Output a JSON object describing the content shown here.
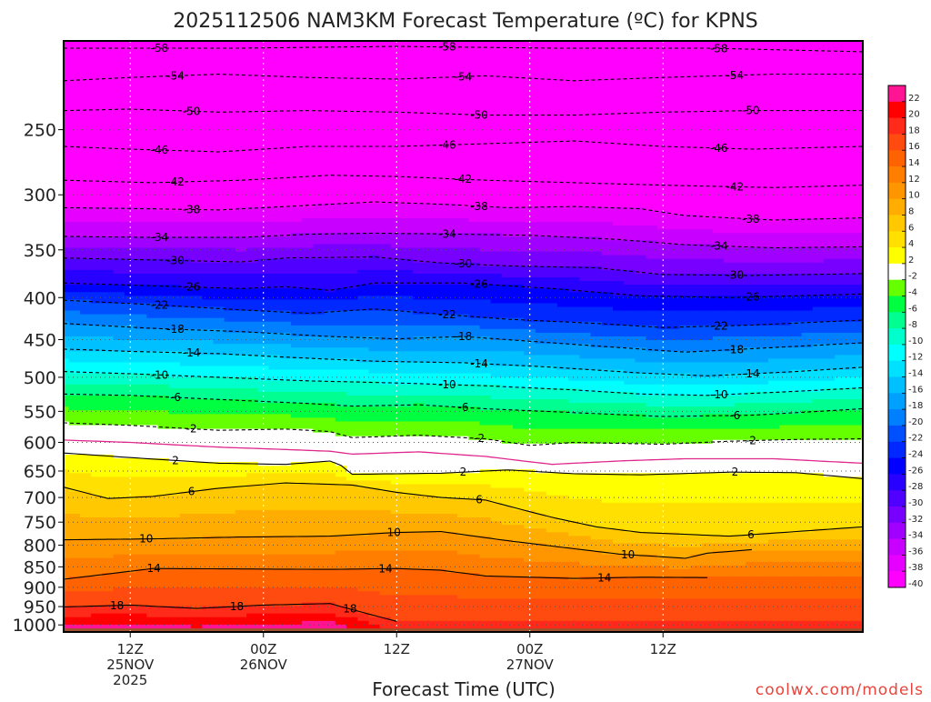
{
  "chart_data": {
    "type": "heatmap",
    "title": "2025112506 NAM3KM Forecast Temperature (ºC) for KPNS",
    "xlabel": "Forecast Time (UTC)",
    "ylabel": "",
    "credit": "coolwx.com/models",
    "y_scale": "log-pressure",
    "ylim": [
      1020,
      195
    ],
    "xlim": [
      6,
      78
    ],
    "grid": true,
    "y_ticks": [
      250,
      300,
      350,
      400,
      450,
      500,
      550,
      600,
      650,
      700,
      750,
      800,
      850,
      900,
      950,
      1000
    ],
    "x_ticks": [
      {
        "hour": 12,
        "time": "12Z",
        "date": "25NOV",
        "year": "2025"
      },
      {
        "hour": 24,
        "time": "00Z",
        "date": "26NOV",
        "year": ""
      },
      {
        "hour": 36,
        "time": "12Z",
        "date": "",
        "year": ""
      },
      {
        "hour": 48,
        "time": "00Z",
        "date": "27NOV",
        "year": ""
      },
      {
        "hour": 60,
        "time": "12Z",
        "date": "",
        "year": ""
      }
    ],
    "colorbar": {
      "labels": [
        22,
        20,
        18,
        16,
        14,
        12,
        10,
        8,
        6,
        4,
        2,
        -2,
        -4,
        -6,
        -8,
        -10,
        -12,
        -14,
        -16,
        -18,
        -20,
        -22,
        -24,
        -26,
        -28,
        -30,
        -32,
        -34,
        -36,
        -38,
        -40
      ],
      "colors": [
        "#ff1493",
        "#ff0000",
        "#ff2a1a",
        "#ff4a10",
        "#ff6200",
        "#ff7e00",
        "#ff9600",
        "#ffad00",
        "#ffc800",
        "#ffe000",
        "#ffff00",
        "#ffffff",
        "#66ff00",
        "#00ff40",
        "#00ff90",
        "#00ffcc",
        "#00ffff",
        "#00e0ff",
        "#00c0ff",
        "#00a0ff",
        "#0080ff",
        "#0050ff",
        "#0028ff",
        "#0000ff",
        "#2800ff",
        "#5000ff",
        "#7800ff",
        "#a000ff",
        "#c800ff",
        "#e600ff",
        "#ff00ff"
      ]
    },
    "series": [
      {
        "name": "-58",
        "values": [
          [
            6,
            199
          ],
          [
            22,
            199
          ],
          [
            36,
            198
          ],
          [
            50,
            199
          ],
          [
            64,
            199
          ],
          [
            78,
            201
          ]
        ]
      },
      {
        "name": "-54",
        "values": [
          [
            6,
            218
          ],
          [
            12,
            216
          ],
          [
            20,
            214
          ],
          [
            28,
            216
          ],
          [
            36,
            217
          ],
          [
            44,
            215
          ],
          [
            52,
            218
          ],
          [
            60,
            216
          ],
          [
            70,
            214
          ],
          [
            78,
            214
          ]
        ]
      },
      {
        "name": "-50",
        "values": [
          [
            6,
            237
          ],
          [
            12,
            236
          ],
          [
            20,
            238
          ],
          [
            28,
            237
          ],
          [
            36,
            238
          ],
          [
            44,
            240
          ],
          [
            52,
            240
          ],
          [
            60,
            238
          ],
          [
            68,
            237
          ],
          [
            78,
            237
          ]
        ]
      },
      {
        "name": "-46",
        "values": [
          [
            6,
            262
          ],
          [
            12,
            264
          ],
          [
            20,
            266
          ],
          [
            28,
            262
          ],
          [
            36,
            262
          ],
          [
            44,
            260
          ],
          [
            52,
            258
          ],
          [
            60,
            262
          ],
          [
            68,
            264
          ],
          [
            78,
            262
          ]
        ]
      },
      {
        "name": "-42",
        "values": [
          [
            6,
            288
          ],
          [
            14,
            290
          ],
          [
            22,
            288
          ],
          [
            30,
            284
          ],
          [
            36,
            285
          ],
          [
            44,
            288
          ],
          [
            52,
            290
          ],
          [
            60,
            292
          ],
          [
            70,
            294
          ],
          [
            78,
            292
          ]
        ]
      },
      {
        "name": "-38",
        "values": [
          [
            6,
            311
          ],
          [
            14,
            312
          ],
          [
            20,
            313
          ],
          [
            28,
            309
          ],
          [
            34,
            306
          ],
          [
            40,
            308
          ],
          [
            46,
            311
          ],
          [
            52,
            310
          ],
          [
            58,
            312
          ],
          [
            62,
            318
          ],
          [
            70,
            322
          ],
          [
            78,
            320
          ]
        ]
      },
      {
        "name": "-34",
        "values": [
          [
            6,
            337
          ],
          [
            14,
            338
          ],
          [
            22,
            338
          ],
          [
            28,
            335
          ],
          [
            34,
            334
          ],
          [
            42,
            335
          ],
          [
            48,
            336
          ],
          [
            56,
            340
          ],
          [
            62,
            345
          ],
          [
            70,
            348
          ],
          [
            78,
            347
          ]
        ]
      },
      {
        "name": "-30",
        "values": [
          [
            6,
            358
          ],
          [
            14,
            360
          ],
          [
            22,
            362
          ],
          [
            26,
            358
          ],
          [
            34,
            357
          ],
          [
            40,
            363
          ],
          [
            46,
            366
          ],
          [
            54,
            368
          ],
          [
            60,
            375
          ],
          [
            68,
            376
          ],
          [
            78,
            374
          ]
        ]
      },
      {
        "name": "-26",
        "values": [
          [
            6,
            384
          ],
          [
            14,
            387
          ],
          [
            22,
            390
          ],
          [
            26,
            388
          ],
          [
            30,
            392
          ],
          [
            34,
            384
          ],
          [
            42,
            384
          ],
          [
            50,
            390
          ],
          [
            58,
            398
          ],
          [
            66,
            400
          ],
          [
            78,
            396
          ]
        ]
      },
      {
        "name": "-22",
        "values": [
          [
            6,
            403
          ],
          [
            14,
            408
          ],
          [
            22,
            414
          ],
          [
            28,
            418
          ],
          [
            34,
            413
          ],
          [
            40,
            419
          ],
          [
            46,
            425
          ],
          [
            54,
            430
          ],
          [
            60,
            435
          ],
          [
            68,
            432
          ],
          [
            78,
            426
          ]
        ]
      },
      {
        "name": "-18",
        "values": [
          [
            6,
            430
          ],
          [
            14,
            436
          ],
          [
            22,
            440
          ],
          [
            30,
            446
          ],
          [
            36,
            449
          ],
          [
            42,
            446
          ],
          [
            48,
            452
          ],
          [
            56,
            460
          ],
          [
            62,
            466
          ],
          [
            70,
            460
          ],
          [
            78,
            454
          ]
        ]
      },
      {
        "name": "-14",
        "values": [
          [
            6,
            462
          ],
          [
            12,
            465
          ],
          [
            20,
            468
          ],
          [
            28,
            474
          ],
          [
            34,
            478
          ],
          [
            42,
            480
          ],
          [
            50,
            486
          ],
          [
            58,
            494
          ],
          [
            64,
            498
          ],
          [
            72,
            492
          ],
          [
            78,
            486
          ]
        ]
      },
      {
        "name": "-10",
        "values": [
          [
            6,
            492
          ],
          [
            12,
            495
          ],
          [
            20,
            500
          ],
          [
            28,
            505
          ],
          [
            36,
            508
          ],
          [
            44,
            512
          ],
          [
            52,
            518
          ],
          [
            58,
            524
          ],
          [
            64,
            526
          ],
          [
            72,
            520
          ],
          [
            78,
            515
          ]
        ]
      },
      {
        "name": "-6",
        "values": [
          [
            6,
            524
          ],
          [
            12,
            526
          ],
          [
            20,
            532
          ],
          [
            28,
            538
          ],
          [
            32,
            542
          ],
          [
            38,
            540
          ],
          [
            44,
            546
          ],
          [
            52,
            552
          ],
          [
            60,
            558
          ],
          [
            68,
            556
          ],
          [
            78,
            546
          ]
        ]
      },
      {
        "name": "-2",
        "values": [
          [
            6,
            568
          ],
          [
            12,
            572
          ],
          [
            20,
            580
          ],
          [
            26,
            578
          ],
          [
            30,
            582
          ],
          [
            32,
            592
          ],
          [
            38,
            588
          ],
          [
            44,
            594
          ],
          [
            48,
            605
          ],
          [
            52,
            600
          ],
          [
            60,
            603
          ],
          [
            66,
            598
          ],
          [
            72,
            595
          ],
          [
            78,
            594
          ]
        ]
      },
      {
        "name": "0",
        "values": [
          [
            6,
            596
          ],
          [
            12,
            600
          ],
          [
            20,
            608
          ],
          [
            26,
            612
          ],
          [
            30,
            615
          ],
          [
            32,
            620
          ],
          [
            38,
            616
          ],
          [
            44,
            624
          ],
          [
            50,
            638
          ],
          [
            56,
            632
          ],
          [
            62,
            628
          ],
          [
            70,
            628
          ],
          [
            78,
            636
          ]
        ]
      },
      {
        "name": "2",
        "values": [
          [
            6,
            618
          ],
          [
            12,
            626
          ],
          [
            20,
            636
          ],
          [
            26,
            638
          ],
          [
            30,
            632
          ],
          [
            31,
            640
          ],
          [
            32,
            656
          ],
          [
            40,
            654
          ],
          [
            46,
            648
          ],
          [
            52,
            655
          ],
          [
            58,
            657
          ],
          [
            66,
            652
          ],
          [
            72,
            653
          ],
          [
            78,
            664
          ]
        ]
      },
      {
        "name": "6",
        "values": [
          [
            6,
            680
          ],
          [
            10,
            702
          ],
          [
            14,
            698
          ],
          [
            20,
            682
          ],
          [
            26,
            672
          ],
          [
            32,
            676
          ],
          [
            36,
            690
          ],
          [
            40,
            700
          ],
          [
            44,
            705
          ],
          [
            50,
            740
          ],
          [
            54,
            760
          ],
          [
            58,
            772
          ],
          [
            66,
            780
          ],
          [
            72,
            770
          ],
          [
            78,
            760
          ]
        ]
      },
      {
        "name": "10",
        "values": [
          [
            6,
            788
          ],
          [
            14,
            786
          ],
          [
            22,
            782
          ],
          [
            30,
            780
          ],
          [
            36,
            772
          ],
          [
            40,
            770
          ],
          [
            46,
            790
          ],
          [
            50,
            802
          ],
          [
            56,
            820
          ],
          [
            62,
            830
          ],
          [
            64,
            818
          ],
          [
            68,
            810
          ]
        ]
      },
      {
        "name": "14",
        "values": [
          [
            6,
            880
          ],
          [
            14,
            854
          ],
          [
            22,
            855
          ],
          [
            30,
            856
          ],
          [
            36,
            854
          ],
          [
            40,
            858
          ],
          [
            44,
            872
          ],
          [
            48,
            875
          ],
          [
            52,
            878
          ],
          [
            58,
            875
          ],
          [
            64,
            876
          ]
        ]
      },
      {
        "name": "18",
        "values": [
          [
            6,
            951
          ],
          [
            12,
            946
          ],
          [
            18,
            955
          ],
          [
            24,
            946
          ],
          [
            30,
            942
          ],
          [
            36,
            990
          ]
        ]
      }
    ]
  }
}
